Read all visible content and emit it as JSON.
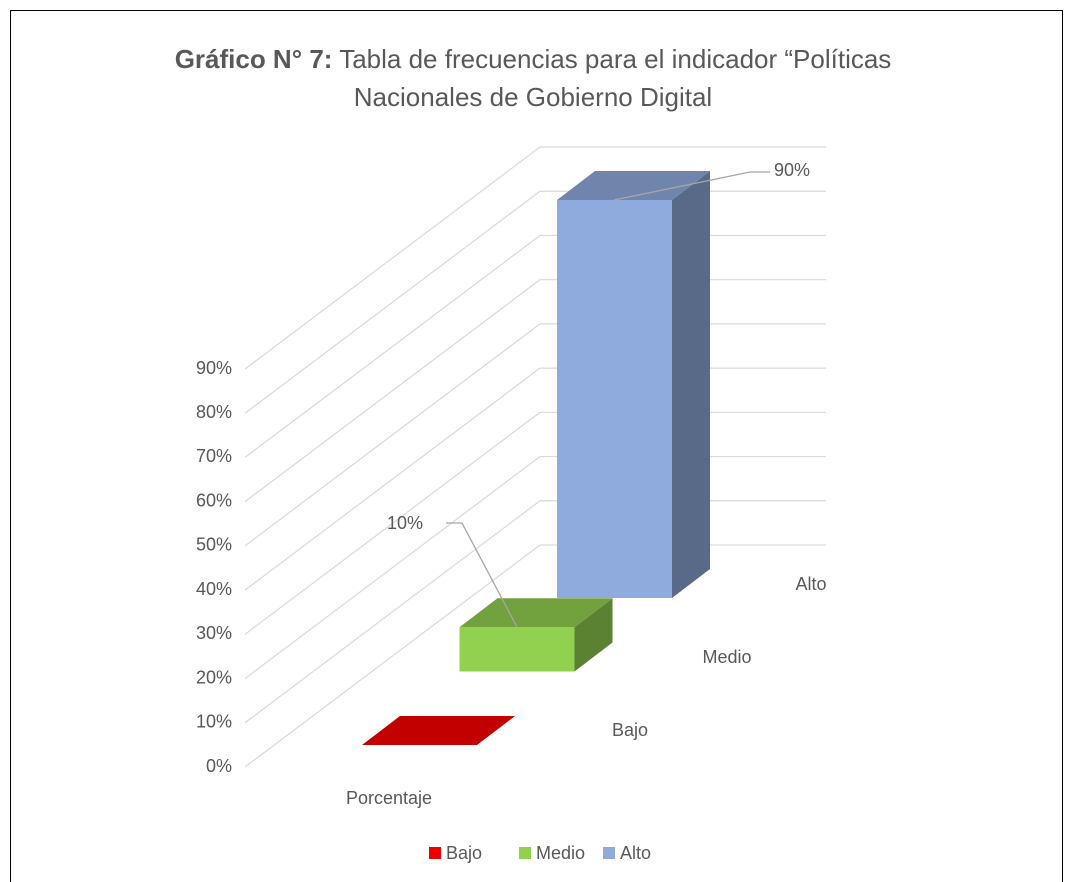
{
  "chart_data": {
    "type": "bar3d",
    "title_label": "Gráfico N° 7:",
    "title": "Tabla de frecuencias para el indicador “Políticas Nacionales de Gobierno Digital",
    "categories": [
      "Porcentaje"
    ],
    "series": [
      {
        "name": "Bajo",
        "color": "#ee0000",
        "values": [
          0
        ]
      },
      {
        "name": "Medio",
        "color": "#92d050",
        "values": [
          10
        ],
        "value_labels": [
          "10%"
        ]
      },
      {
        "name": "Alto",
        "color": "#8faadc",
        "values": [
          90
        ],
        "value_labels": [
          "90%"
        ]
      }
    ],
    "ylim": [
      0,
      90
    ],
    "yticks": [
      {
        "value": 0,
        "label": "0%"
      },
      {
        "value": 10,
        "label": "10%"
      },
      {
        "value": 20,
        "label": "20%"
      },
      {
        "value": 30,
        "label": "30%"
      },
      {
        "value": 40,
        "label": "40%"
      },
      {
        "value": 50,
        "label": "50%"
      },
      {
        "value": 60,
        "label": "60%"
      },
      {
        "value": 70,
        "label": "70%"
      },
      {
        "value": 80,
        "label": "80%"
      },
      {
        "value": 90,
        "label": "90%"
      }
    ],
    "grid": true,
    "legend": "bottom"
  }
}
